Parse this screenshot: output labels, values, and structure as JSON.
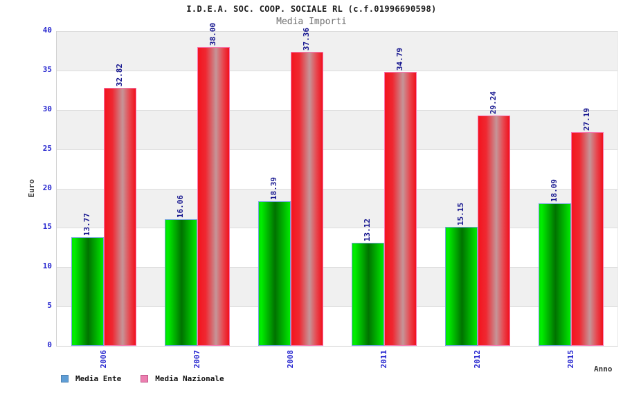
{
  "header": {
    "title": "I.D.E.A. SOC. COOP. SOCIALE RL (c.f.01996690598)",
    "subtitle": "Media Importi"
  },
  "chart_data": {
    "type": "bar",
    "title": "I.D.E.A. SOC. COOP. SOCIALE RL (c.f.01996690598)",
    "subtitle": "Media Importi",
    "xlabel": "Anno",
    "ylabel": "Euro",
    "ylim": [
      0,
      40
    ],
    "ytick_step": 5,
    "y_tick_labels": [
      "0",
      "5",
      "10",
      "15",
      "20",
      "25",
      "30",
      "35",
      "40"
    ],
    "grid": "horizontal alternating bands, gridline every 5",
    "legend_position": "bottom-left",
    "categories": [
      "2006",
      "2007",
      "2008",
      "2011",
      "2012",
      "2015"
    ],
    "series": [
      {
        "name": "Media Ente",
        "values": [
          13.77,
          16.06,
          18.39,
          13.12,
          15.15,
          18.09
        ],
        "value_labels": [
          "13.77",
          "16.06",
          "18.39",
          "13.12",
          "15.15",
          "18.09"
        ],
        "bar_style": "green",
        "legend_swatch": "#5f9ed6",
        "legend_swatch_border": "#4b7fb0"
      },
      {
        "name": "Media Nazionale",
        "values": [
          32.82,
          38.0,
          37.36,
          34.79,
          29.24,
          27.19
        ],
        "value_labels": [
          "32.82",
          "38.00",
          "37.36",
          "34.79",
          "29.24",
          "27.19"
        ],
        "bar_style": "red",
        "legend_swatch": "#ec7fb0",
        "legend_swatch_border": "#c05588"
      }
    ]
  },
  "colors": {
    "background": "#ffffff",
    "band_gray": "#f0f0f0",
    "band_white": "#ffffff",
    "gridline": "#dcdcdc",
    "axis_line": "#d0d0d0",
    "tick_label_blue": "#2626cf",
    "value_label_navy": "#16168f",
    "title_text": "#1a1a1a",
    "subtitle_text": "#6e6e6e",
    "axis_title_text": "#3a3a3a",
    "green_bar_edge": "#00e400",
    "green_bar_mid": "#007200",
    "green_bar_border": "#73a4dc",
    "red_bar_edge": "#f3141f",
    "red_bar_highlight": "#c59598",
    "red_bar_border": "#f878b2"
  }
}
